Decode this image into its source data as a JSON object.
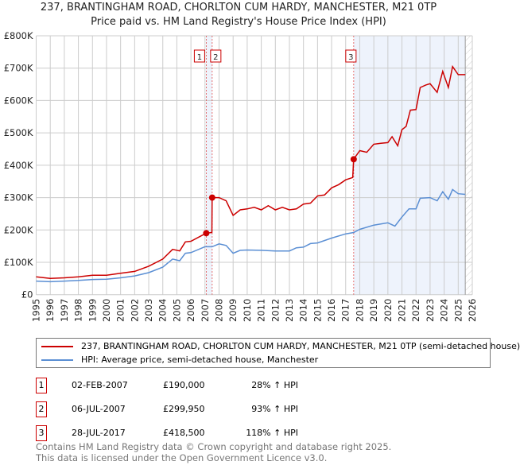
{
  "chart_data": {
    "type": "line",
    "title": "237, BRANTINGHAM ROAD, CHORLTON CUM HARDY, MANCHESTER, M21 0TP",
    "subtitle": "Price paid vs. HM Land Registry's House Price Index (HPI)",
    "xlim": [
      1995,
      2026
    ],
    "ylim": [
      0,
      800000
    ],
    "xticks": [
      "1995",
      "1996",
      "1997",
      "1998",
      "1999",
      "2000",
      "2001",
      "2002",
      "2003",
      "2004",
      "2005",
      "2006",
      "2007",
      "2008",
      "2009",
      "2010",
      "2011",
      "2012",
      "2013",
      "2014",
      "2015",
      "2016",
      "2017",
      "2018",
      "2019",
      "2020",
      "2021",
      "2022",
      "2023",
      "2024",
      "2025",
      "2026"
    ],
    "yticks": [
      {
        "v": 0,
        "l": "£0"
      },
      {
        "v": 100000,
        "l": "£100K"
      },
      {
        "v": 200000,
        "l": "£200K"
      },
      {
        "v": 300000,
        "l": "£300K"
      },
      {
        "v": 400000,
        "l": "£400K"
      },
      {
        "v": 500000,
        "l": "£500K"
      },
      {
        "v": 600000,
        "l": "£600K"
      },
      {
        "v": 700000,
        "l": "£700K"
      },
      {
        "v": 800000,
        "l": "£800K"
      }
    ],
    "grid": true,
    "series": [
      {
        "name": "237, BRANTINGHAM ROAD, CHORLTON CUM HARDY, MANCHESTER, M21 0TP (semi-detached house)",
        "color": "#cc0000",
        "x": [
          1995,
          1996,
          1997,
          1998,
          1999,
          2000,
          2001,
          2002,
          2003,
          2004,
          2004.7,
          2005.2,
          2005.6,
          2006,
          2007.09,
          2007.49,
          2007.51,
          2008,
          2008.5,
          2009,
          2009.5,
          2010,
          2010.5,
          2011,
          2011.5,
          2012,
          2012.5,
          2013,
          2013.5,
          2014,
          2014.5,
          2015,
          2015.5,
          2016,
          2016.5,
          2017,
          2017.5,
          2017.57,
          2018,
          2018.5,
          2019,
          2019.5,
          2020,
          2020.3,
          2020.7,
          2021,
          2021.3,
          2021.6,
          2022,
          2022.3,
          2022.7,
          2023,
          2023.5,
          2023.9,
          2024.3,
          2024.6,
          2025,
          2025.5
        ],
        "y": [
          55000,
          50000,
          52000,
          55000,
          60000,
          60000,
          66000,
          72000,
          88000,
          110000,
          140000,
          135000,
          163000,
          165000,
          190000,
          192000,
          299950,
          300000,
          290000,
          245000,
          262000,
          265000,
          270000,
          262000,
          275000,
          262000,
          270000,
          262000,
          265000,
          280000,
          283000,
          305000,
          308000,
          330000,
          340000,
          355000,
          362000,
          418500,
          445000,
          440000,
          465000,
          468000,
          470000,
          488000,
          460000,
          510000,
          520000,
          570000,
          572000,
          640000,
          648000,
          652000,
          625000,
          690000,
          640000,
          705000,
          680000,
          680000
        ]
      },
      {
        "name": "HPI: Average price, semi-detached house, Manchester",
        "color": "#5b8fd4",
        "x": [
          1995,
          1996,
          1997,
          1998,
          1999,
          2000,
          2001,
          2002,
          2003,
          2004,
          2004.7,
          2005.2,
          2005.6,
          2006,
          2007,
          2007.5,
          2008,
          2008.5,
          2009,
          2009.5,
          2010,
          2011,
          2012,
          2013,
          2013.5,
          2014,
          2014.5,
          2015,
          2016,
          2017,
          2017.57,
          2018,
          2019,
          2020,
          2020.5,
          2021,
          2021.5,
          2022,
          2022.3,
          2023,
          2023.5,
          2023.9,
          2024.3,
          2024.6,
          2025,
          2025.5
        ],
        "y": [
          42000,
          40000,
          42000,
          44000,
          47000,
          48000,
          52000,
          58000,
          68000,
          85000,
          110000,
          105000,
          128000,
          130000,
          148000,
          148000,
          157000,
          152000,
          128000,
          137000,
          138000,
          137000,
          135000,
          135000,
          145000,
          147000,
          158000,
          160000,
          175000,
          188000,
          192000,
          202000,
          215000,
          222000,
          212000,
          240000,
          265000,
          265000,
          298000,
          300000,
          290000,
          318000,
          295000,
          325000,
          312000,
          310000
        ]
      }
    ],
    "markers": [
      {
        "label": "1",
        "x": 2007.09,
        "y": 190000
      },
      {
        "label": "2",
        "x": 2007.51,
        "y": 299950
      },
      {
        "label": "3",
        "x": 2017.57,
        "y": 418500
      }
    ],
    "legend_placement": "bottom"
  },
  "transactions": [
    {
      "num": "1",
      "date": "02-FEB-2007",
      "price": "£190,000",
      "hpi": "28% ↑ HPI"
    },
    {
      "num": "2",
      "date": "06-JUL-2007",
      "price": "£299,950",
      "hpi": "93% ↑ HPI"
    },
    {
      "num": "3",
      "date": "28-JUL-2017",
      "price": "£418,500",
      "hpi": "118% ↑ HPI"
    }
  ],
  "footer": [
    "Contains HM Land Registry data © Crown copyright and database right 2025.",
    "This data is licensed under the Open Government Licence v3.0."
  ]
}
